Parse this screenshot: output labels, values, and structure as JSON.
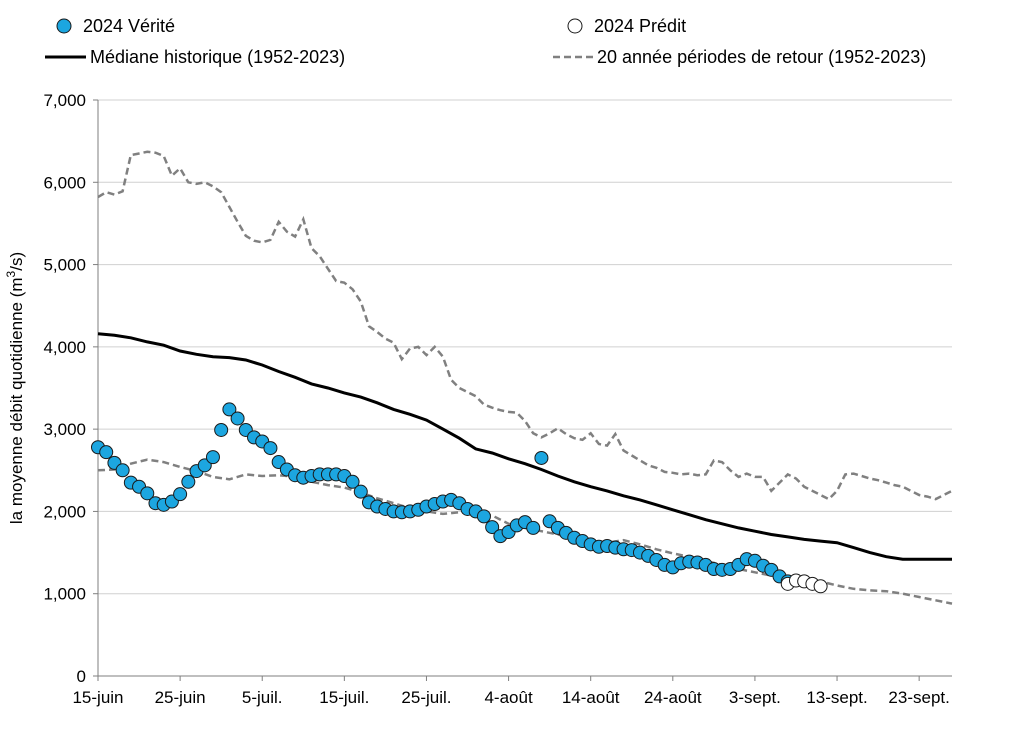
{
  "chart_data": {
    "type": "line",
    "ylabel_main": "la moyenne débit quotidienne (m",
    "ylabel_sup": "3",
    "ylabel_end": "/s)",
    "ylim": [
      0,
      7000
    ],
    "yticks": [
      0,
      1000,
      2000,
      3000,
      4000,
      5000,
      6000,
      7000
    ],
    "ytick_labels": [
      "0",
      "1,000",
      "2,000",
      "3,000",
      "4,000",
      "5,000",
      "6,000",
      "7,000"
    ],
    "xlim_day": [
      0,
      104
    ],
    "xticks": [
      {
        "day": 0,
        "label": "15-juin"
      },
      {
        "day": 10,
        "label": "25-juin"
      },
      {
        "day": 20,
        "label": "5-juil."
      },
      {
        "day": 30,
        "label": "15-juil."
      },
      {
        "day": 40,
        "label": "25-juil."
      },
      {
        "day": 50,
        "label": "4-août"
      },
      {
        "day": 60,
        "label": "14-août"
      },
      {
        "day": 70,
        "label": "24-août"
      },
      {
        "day": 80,
        "label": "3-sept."
      },
      {
        "day": 90,
        "label": "13-sept."
      },
      {
        "day": 100,
        "label": "23-sept."
      }
    ],
    "grid": "horizontal",
    "legend_position": "top",
    "series": [
      {
        "name": "2024 Vérité",
        "style": "marker-filled",
        "color": "#1CA6E0",
        "edge": "#1a1a1a",
        "x": [
          0,
          1,
          2,
          3,
          4,
          5,
          6,
          7,
          8,
          9,
          10,
          11,
          12,
          13,
          14,
          15,
          16,
          17,
          18,
          19,
          20,
          21,
          22,
          23,
          24,
          25,
          26,
          27,
          28,
          29,
          30,
          31,
          32,
          33,
          34,
          35,
          36,
          37,
          38,
          39,
          40,
          41,
          42,
          43,
          44,
          45,
          46,
          47,
          48,
          49,
          50,
          51,
          52,
          53,
          54,
          55,
          56,
          57,
          58,
          59,
          60,
          61,
          62,
          63,
          64,
          65,
          66,
          67,
          68,
          69,
          70,
          71,
          72,
          73,
          74,
          75,
          76,
          77,
          78,
          79,
          80,
          81,
          82,
          83,
          84
        ],
        "y": [
          2780,
          2720,
          2590,
          2500,
          2350,
          2300,
          2220,
          2100,
          2080,
          2120,
          2210,
          2360,
          2490,
          2560,
          2660,
          2990,
          3240,
          3130,
          2990,
          2900,
          2850,
          2770,
          2600,
          2510,
          2440,
          2410,
          2430,
          2450,
          2450,
          2450,
          2430,
          2360,
          2240,
          2110,
          2060,
          2030,
          2000,
          1990,
          2000,
          2020,
          2060,
          2090,
          2120,
          2140,
          2100,
          2030,
          2000,
          1940,
          1810,
          1700,
          1750,
          1830,
          1870,
          1800,
          2650,
          1880,
          1800,
          1740,
          1680,
          1640,
          1600,
          1570,
          1580,
          1560,
          1540,
          1530,
          1500,
          1460,
          1410,
          1350,
          1320,
          1370,
          1390,
          1380,
          1350,
          1300,
          1290,
          1300,
          1350,
          1420,
          1400,
          1340,
          1290,
          1210,
          1150
        ]
      },
      {
        "name": "2024 Prédit",
        "style": "marker-open",
        "color": "#ffffff",
        "edge": "#1a1a1a",
        "x": [
          84,
          85,
          86,
          87,
          88
        ],
        "y": [
          1120,
          1160,
          1150,
          1120,
          1090
        ]
      },
      {
        "name": "Médiane historique (1952-2023)",
        "style": "solid",
        "color": "#000000",
        "x": [
          0,
          2,
          4,
          6,
          8,
          10,
          12,
          14,
          16,
          18,
          20,
          22,
          24,
          26,
          28,
          30,
          32,
          34,
          36,
          38,
          40,
          42,
          44,
          46,
          48,
          50,
          52,
          54,
          56,
          58,
          60,
          62,
          64,
          66,
          68,
          70,
          72,
          74,
          76,
          78,
          80,
          82,
          84,
          86,
          88,
          90,
          92,
          94,
          96,
          98,
          100,
          102,
          104
        ],
        "y": [
          4160,
          4140,
          4110,
          4060,
          4020,
          3950,
          3910,
          3880,
          3870,
          3840,
          3780,
          3700,
          3630,
          3550,
          3500,
          3440,
          3390,
          3320,
          3240,
          3180,
          3110,
          3000,
          2890,
          2760,
          2710,
          2640,
          2580,
          2510,
          2430,
          2360,
          2300,
          2250,
          2190,
          2140,
          2080,
          2020,
          1960,
          1900,
          1850,
          1800,
          1760,
          1720,
          1690,
          1660,
          1640,
          1620,
          1560,
          1500,
          1450,
          1420,
          1420,
          1420,
          1420
        ]
      },
      {
        "name": "20 année périodes de retour (1952-2023)",
        "style": "dashed",
        "color": "#808080",
        "upper_x": [
          0,
          1,
          2,
          3,
          4,
          5,
          6,
          7,
          8,
          9,
          10,
          11,
          12,
          13,
          14,
          15,
          16,
          17,
          18,
          19,
          20,
          21,
          22,
          23,
          24,
          25,
          26,
          27,
          28,
          29,
          30,
          31,
          32,
          33,
          34,
          35,
          36,
          37,
          38,
          39,
          40,
          41,
          42,
          43,
          44,
          45,
          46,
          47,
          48,
          49,
          50,
          51,
          52,
          53,
          54,
          55,
          56,
          57,
          58,
          59,
          60,
          61,
          62,
          63,
          64,
          65,
          66,
          67,
          68,
          69,
          70,
          71,
          72,
          73,
          74,
          75,
          76,
          77,
          78,
          79,
          80,
          81,
          82,
          83,
          84,
          85,
          86,
          87,
          88,
          89,
          90,
          91,
          92,
          93,
          94,
          95,
          96,
          97,
          98,
          99,
          100,
          101,
          102,
          103,
          104
        ],
        "upper_y": [
          5820,
          5880,
          5850,
          5890,
          6330,
          6350,
          6370,
          6360,
          6320,
          6080,
          6170,
          6000,
          5980,
          6000,
          5950,
          5880,
          5700,
          5520,
          5350,
          5290,
          5270,
          5300,
          5520,
          5400,
          5340,
          5550,
          5200,
          5100,
          4950,
          4800,
          4780,
          4700,
          4550,
          4250,
          4180,
          4100,
          4050,
          3850,
          3980,
          4000,
          3900,
          4000,
          3880,
          3600,
          3500,
          3450,
          3400,
          3300,
          3260,
          3230,
          3210,
          3200,
          3100,
          2950,
          2900,
          2950,
          3010,
          2940,
          2890,
          2870,
          2950,
          2820,
          2800,
          2940,
          2740,
          2680,
          2620,
          2560,
          2530,
          2480,
          2470,
          2450,
          2460,
          2440,
          2450,
          2620,
          2600,
          2500,
          2420,
          2460,
          2420,
          2420,
          2250,
          2350,
          2450,
          2400,
          2300,
          2250,
          2200,
          2150,
          2250,
          2450,
          2460,
          2430,
          2400,
          2380,
          2350,
          2320,
          2300,
          2250,
          2200,
          2180,
          2150,
          2200,
          2250
        ],
        "lower_x": [
          0,
          2,
          4,
          6,
          8,
          10,
          12,
          14,
          16,
          18,
          20,
          22,
          24,
          26,
          28,
          30,
          32,
          34,
          36,
          38,
          40,
          42,
          44,
          46,
          48,
          50,
          52,
          54,
          56,
          58,
          60,
          62,
          64,
          66,
          68,
          70,
          72,
          74,
          76,
          78,
          80,
          82,
          84,
          86,
          88,
          90,
          92,
          94,
          96,
          98,
          100,
          102,
          104
        ],
        "lower_y": [
          2500,
          2510,
          2580,
          2630,
          2600,
          2540,
          2490,
          2420,
          2390,
          2450,
          2430,
          2440,
          2420,
          2360,
          2320,
          2290,
          2230,
          2160,
          2100,
          2040,
          2000,
          1970,
          1990,
          1980,
          1950,
          1850,
          1800,
          1760,
          1720,
          1680,
          1640,
          1620,
          1650,
          1600,
          1540,
          1490,
          1450,
          1400,
          1350,
          1300,
          1260,
          1220,
          1200,
          1180,
          1150,
          1100,
          1060,
          1040,
          1030,
          1000,
          960,
          920,
          880
        ]
      }
    ]
  }
}
